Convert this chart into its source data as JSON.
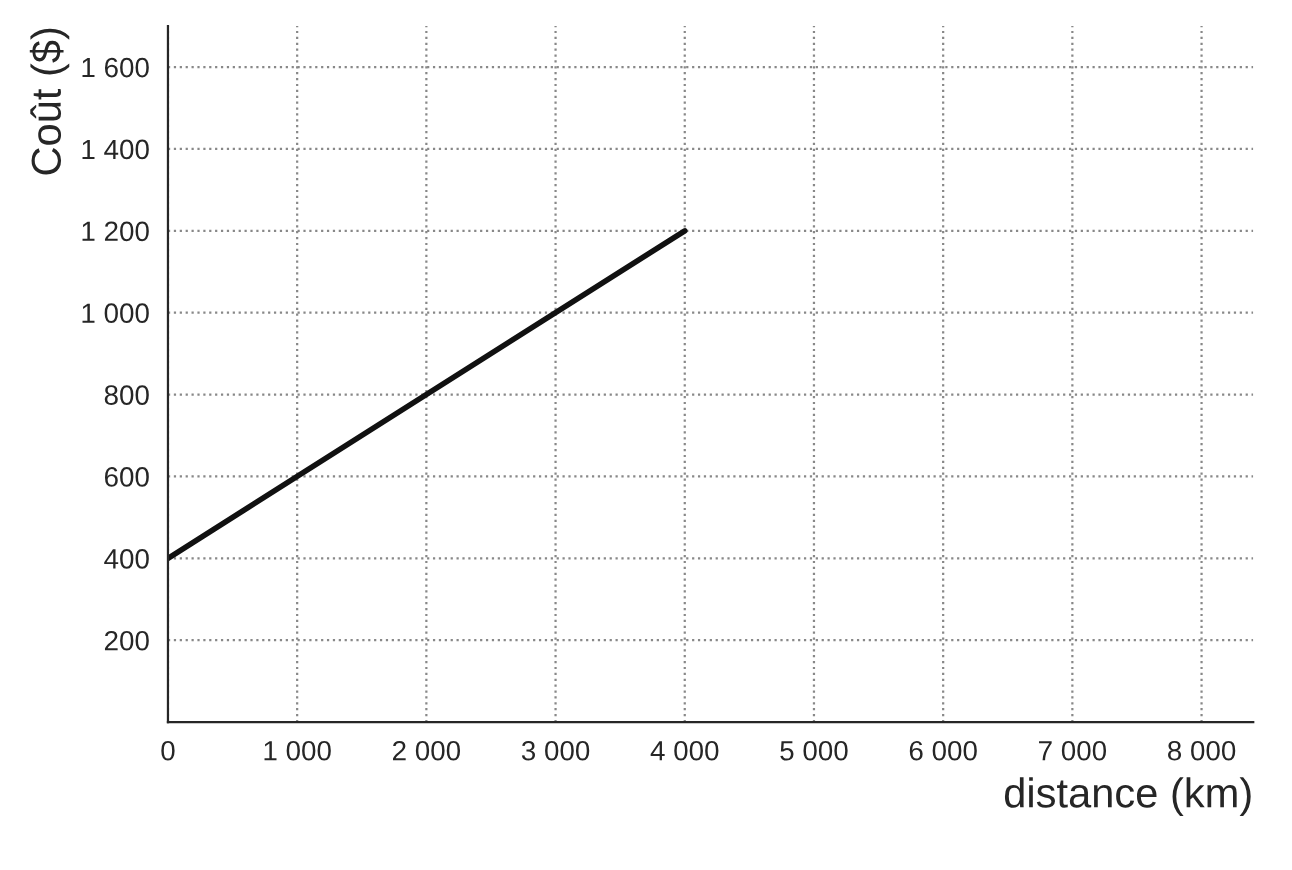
{
  "chart_data": {
    "type": "line",
    "xlabel": "distance (km)",
    "ylabel": "Coût ($)",
    "x": [
      0,
      4000
    ],
    "series": [
      {
        "color": "#111111",
        "values": [
          400,
          1200
        ]
      }
    ],
    "xlim": [
      0,
      8400
    ],
    "ylim": [
      0,
      1700
    ],
    "xticks": [
      0,
      {
        "value": 1000,
        "label": "1 000"
      },
      {
        "value": 2000,
        "label": "2 000"
      },
      {
        "value": 3000,
        "label": "3 000"
      },
      {
        "value": 4000,
        "label": "4 000"
      },
      {
        "value": 5000,
        "label": "5 000"
      },
      {
        "value": 6000,
        "label": "6 000"
      },
      {
        "value": 7000,
        "label": "7 000"
      },
      {
        "value": 8000,
        "label": "8 000"
      }
    ],
    "yticks": [
      200,
      400,
      600,
      800,
      {
        "value": 1000,
        "label": "1 000"
      },
      {
        "value": 1200,
        "label": "1 200"
      },
      {
        "value": 1400,
        "label": "1 400"
      },
      {
        "value": 1600,
        "label": "1 600"
      }
    ],
    "grid": true,
    "marker": "none",
    "line_style": "solid"
  }
}
